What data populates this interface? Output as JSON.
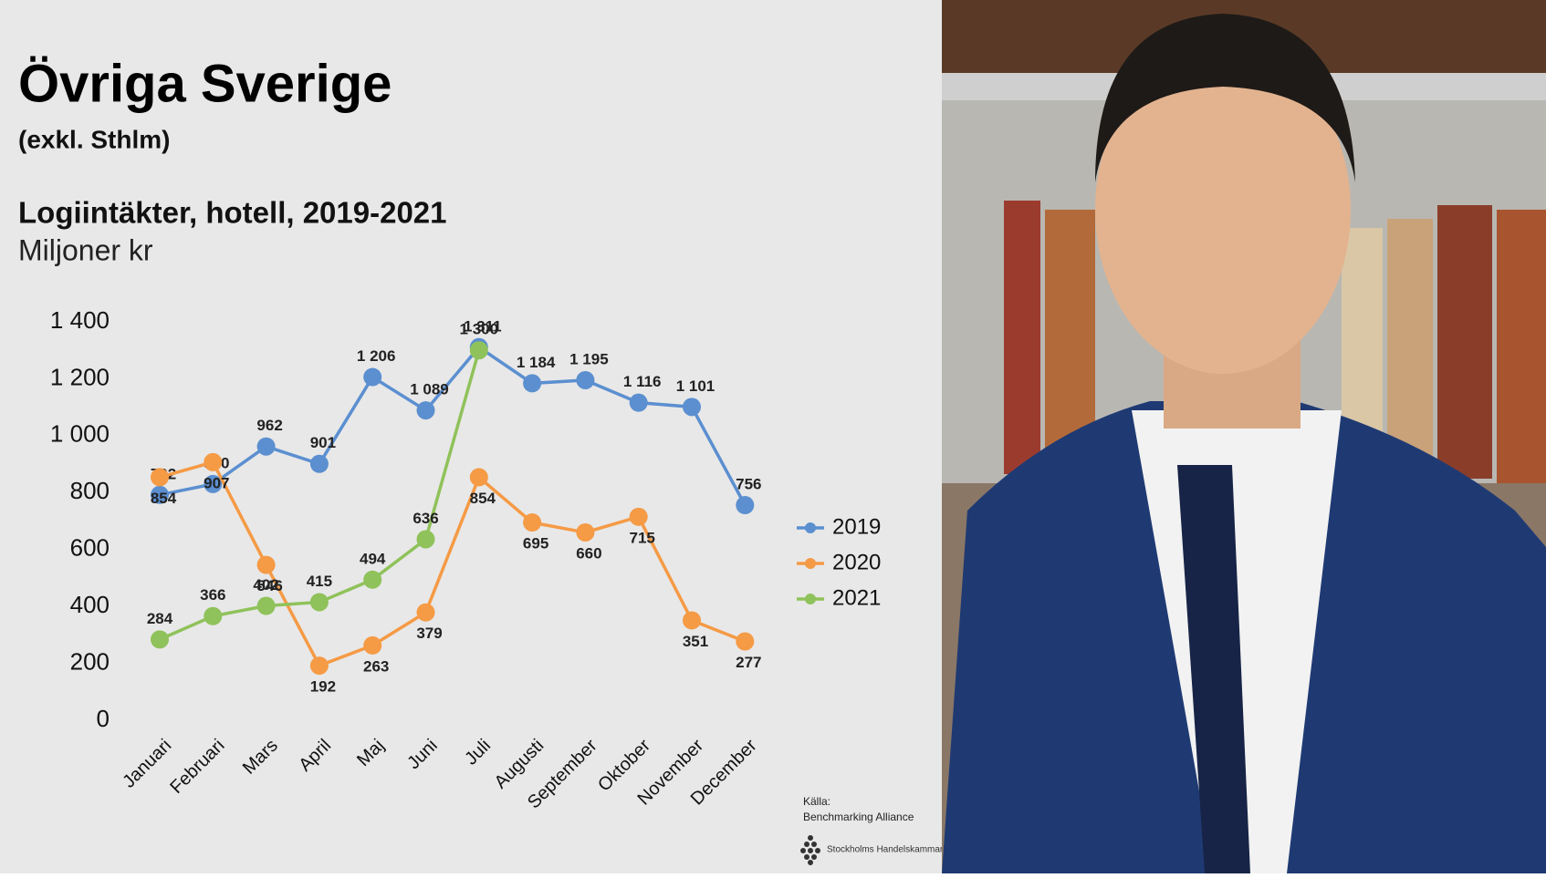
{
  "header": {
    "title": "Övriga Sverige",
    "subtitle": "(exkl. Sthlm)"
  },
  "chart_data": {
    "type": "line",
    "title": "Logiintäkter, hotell, 2019-2021",
    "y_label": "Miljoner kr",
    "categories": [
      "Januari",
      "Februari",
      "Mars",
      "April",
      "Maj",
      "Juni",
      "Juli",
      "Augusti",
      "September",
      "Oktober",
      "November",
      "December"
    ],
    "series": [
      {
        "name": "2019",
        "color": "#5b8fd0",
        "values": [
          792,
          830,
          962,
          901,
          1206,
          1089,
          1311,
          1184,
          1195,
          1116,
          1101,
          756
        ],
        "value_labels": [
          "792",
          "830",
          "962",
          "901",
          "1 206",
          "1 089",
          "1 311",
          "1 184",
          "1 195",
          "1 116",
          "1 101",
          "756"
        ]
      },
      {
        "name": "2020",
        "color": "#f59a45",
        "values": [
          854,
          907,
          546,
          192,
          263,
          379,
          854,
          695,
          660,
          715,
          351,
          277
        ],
        "value_labels": [
          "854",
          "907",
          "546",
          "192",
          "263",
          "379",
          "854",
          "695",
          "660",
          "715",
          "351",
          "277"
        ]
      },
      {
        "name": "2021",
        "color": "#8fc25a",
        "values": [
          284,
          366,
          402,
          415,
          494,
          636,
          1300,
          null,
          null,
          null,
          null,
          null
        ],
        "value_labels": [
          "284",
          "366",
          "402",
          "415",
          "494",
          "636",
          "1 300",
          null,
          null,
          null,
          null,
          null
        ]
      }
    ],
    "ylim": [
      0,
      1400
    ],
    "yticks": [
      0,
      200,
      400,
      600,
      800,
      {
        "value": 1000,
        "label": "1 000"
      },
      {
        "value": 1200,
        "label": "1 200"
      },
      {
        "value": 1400,
        "label": "1 400"
      }
    ],
    "legend": "right",
    "grid": false
  },
  "footer": {
    "source_label": "Källa:",
    "source": "Benchmarking Alliance",
    "logo": "Stockholms Handelskammare"
  }
}
